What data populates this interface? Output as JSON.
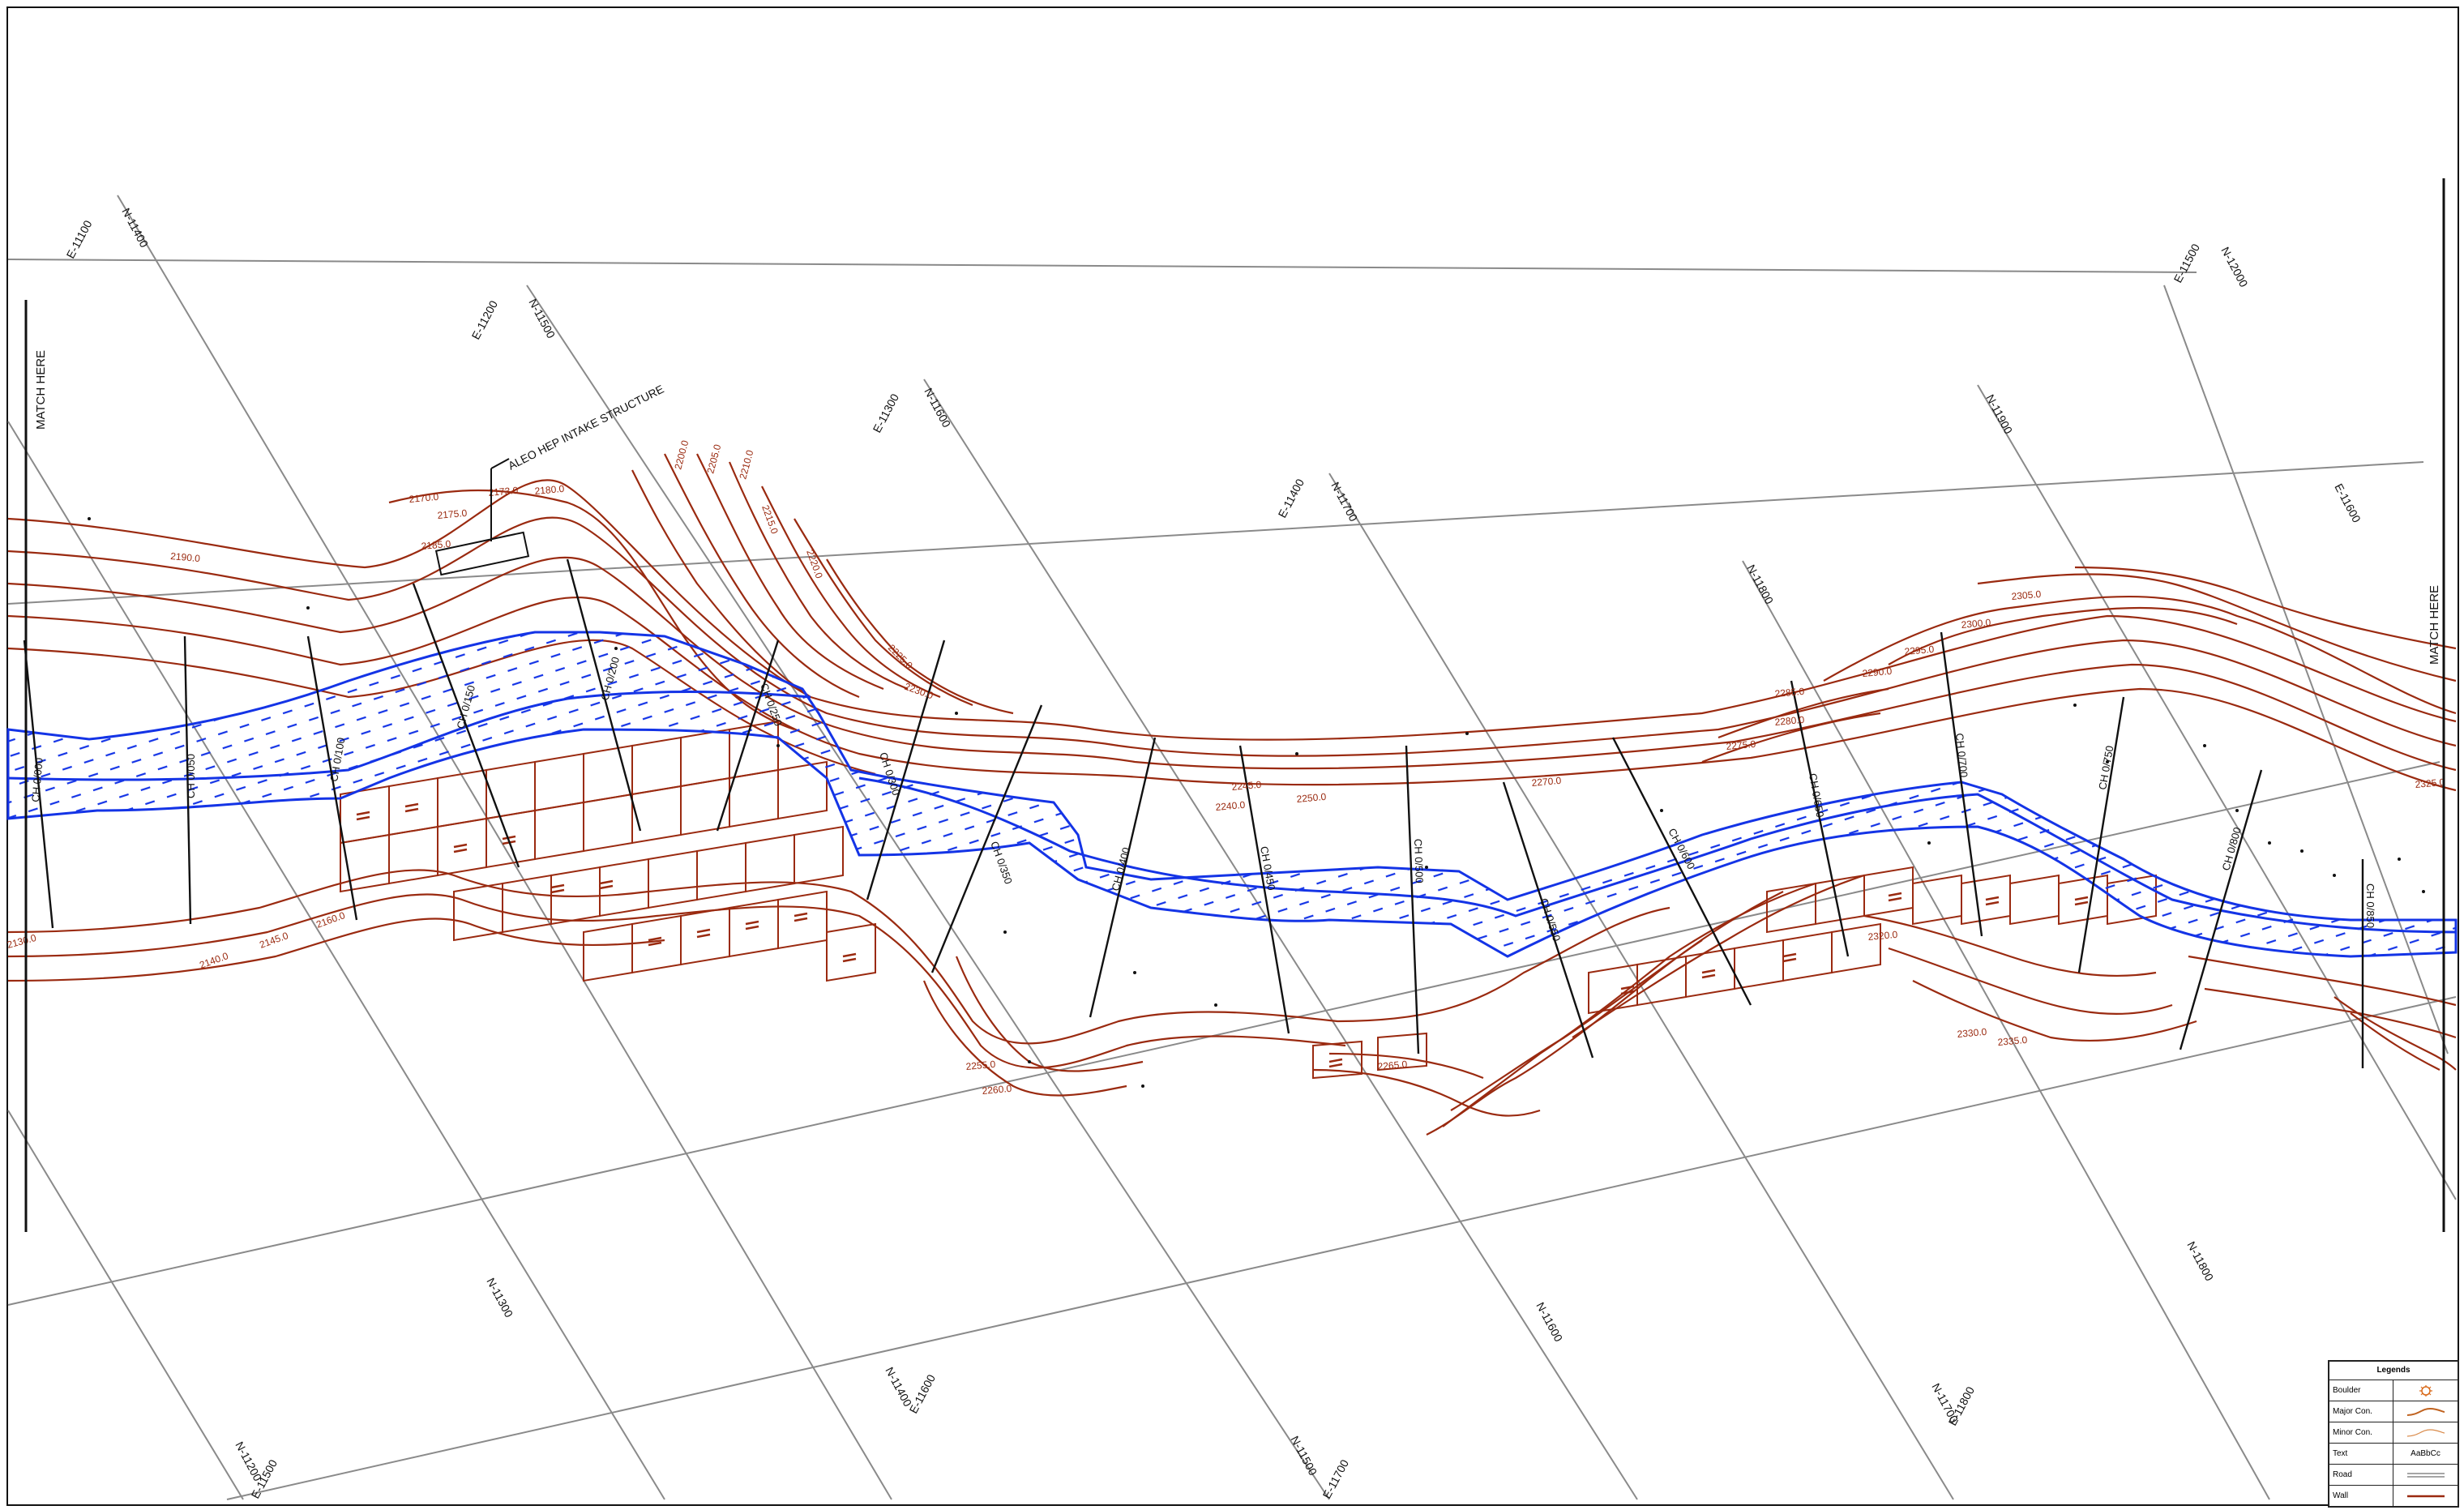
{
  "title_label": "ALEO HEP INTAKE STRUCTURE",
  "match_left": "MATCH HERE",
  "match_right": "MATCH HERE",
  "grid_labels": [
    "E-11100",
    "N-11400",
    "E-11200",
    "N-11500",
    "E-11300",
    "N-11600",
    "E-11400",
    "N-11700",
    "N-11800",
    "N-11900",
    "E-11500",
    "N-12000",
    "E-11600",
    "N-11300",
    "N-11400",
    "E-11600",
    "N-11500",
    "E-11700",
    "N-11200",
    "E-11500",
    "N-11600",
    "N-11700",
    "E-11800",
    "N-11800"
  ],
  "contour_labels": [
    "2130.0",
    "2135.0",
    "2140.0",
    "2145.0",
    "2160.0",
    "2165.0",
    "2170.0",
    "2173.0",
    "2175.0",
    "2180.0",
    "2185.0",
    "2190.0",
    "2200.0",
    "2205.0",
    "2210.0",
    "2215.0",
    "2220.0",
    "2225.0",
    "2230.0",
    "2240.0",
    "2245.0",
    "2250.0",
    "2255.0",
    "2260.0",
    "2265.0",
    "2270.0",
    "2275.0",
    "2280.0",
    "2285.0",
    "2290.0",
    "2295.0",
    "2300.0",
    "2305.0",
    "2310.0",
    "2320.0",
    "2325.0",
    "2330.0",
    "2335.0"
  ],
  "chainages": [
    "CH 0/000",
    "CH 0/050",
    "CH 0/100",
    "CH 0/150",
    "CH 0/200",
    "CH 0/250",
    "CH 0/300",
    "CH 0/350",
    "CH 0/400",
    "CH 0/450",
    "CH 0/500",
    "CH 0/550",
    "CH 0/600",
    "CH 0/650",
    "CH 0/700",
    "CH 0/750",
    "CH 0/800",
    "CH 0/850",
    "CH 0/900",
    "CH 0/950"
  ],
  "legend": {
    "title": "Legends",
    "rows": [
      {
        "name": "Boulder",
        "symbol": "boulder-icon"
      },
      {
        "name": "Major Con.",
        "symbol": "major-contour-line"
      },
      {
        "name": "Minor Con.",
        "symbol": "minor-contour-line"
      },
      {
        "name": "Text",
        "symbol_text": "AaBbCc"
      },
      {
        "name": "Road",
        "symbol": "road-line"
      },
      {
        "name": "Wall",
        "symbol": "wall-line"
      }
    ]
  },
  "colors": {
    "contour": "#9a2a10",
    "river": "#1434e6",
    "grid": "#8a8a8a",
    "minor_contour": "#d98a4a"
  }
}
